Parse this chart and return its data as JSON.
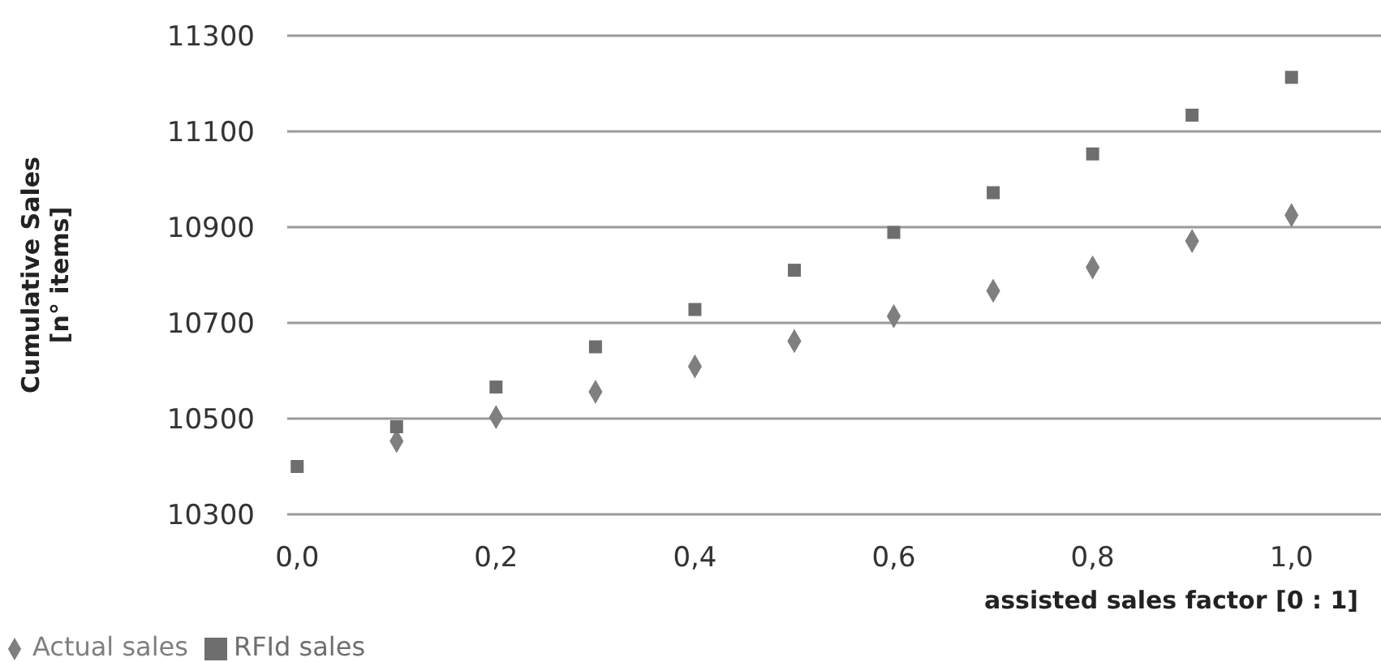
{
  "chart_data": {
    "type": "scatter",
    "xlabel": "assisted sales factor [0 : 1]",
    "ylabel": "Cumulative Sales\n[n° items]",
    "x": [
      0,
      0.1,
      0.2,
      0.3,
      0.4,
      0.5,
      0.6,
      0.7,
      0.8,
      0.9,
      1.0
    ],
    "series": [
      {
        "name": "Actual sales",
        "color": "#7f7f7f",
        "marker": "diamond",
        "values": [
          null,
          10453,
          10503,
          10556,
          10609,
          10662,
          10714,
          10767,
          10816,
          10871,
          10925
        ]
      },
      {
        "name": "RFId sales",
        "color": "#6e6e6e",
        "marker": "square",
        "values": [
          10400,
          10483,
          10566,
          10650,
          10728,
          10810,
          10889,
          10972,
          11053,
          11134,
          11213
        ]
      }
    ],
    "xlim": [
      -0.01,
      1.09
    ],
    "xticks": [
      {
        "value": 0,
        "label": "0,0"
      },
      {
        "value": 0.2,
        "label": "0,2"
      },
      {
        "value": 0.4,
        "label": "0,4"
      },
      {
        "value": 0.6,
        "label": "0,6"
      },
      {
        "value": 0.8,
        "label": "0,8"
      },
      {
        "value": 1.0,
        "label": "1,0"
      }
    ],
    "ylim": [
      10300,
      11300
    ],
    "yticks": [
      10300,
      10500,
      10700,
      10900,
      11100,
      11300
    ],
    "grid": "y",
    "legend": "bottom left"
  }
}
